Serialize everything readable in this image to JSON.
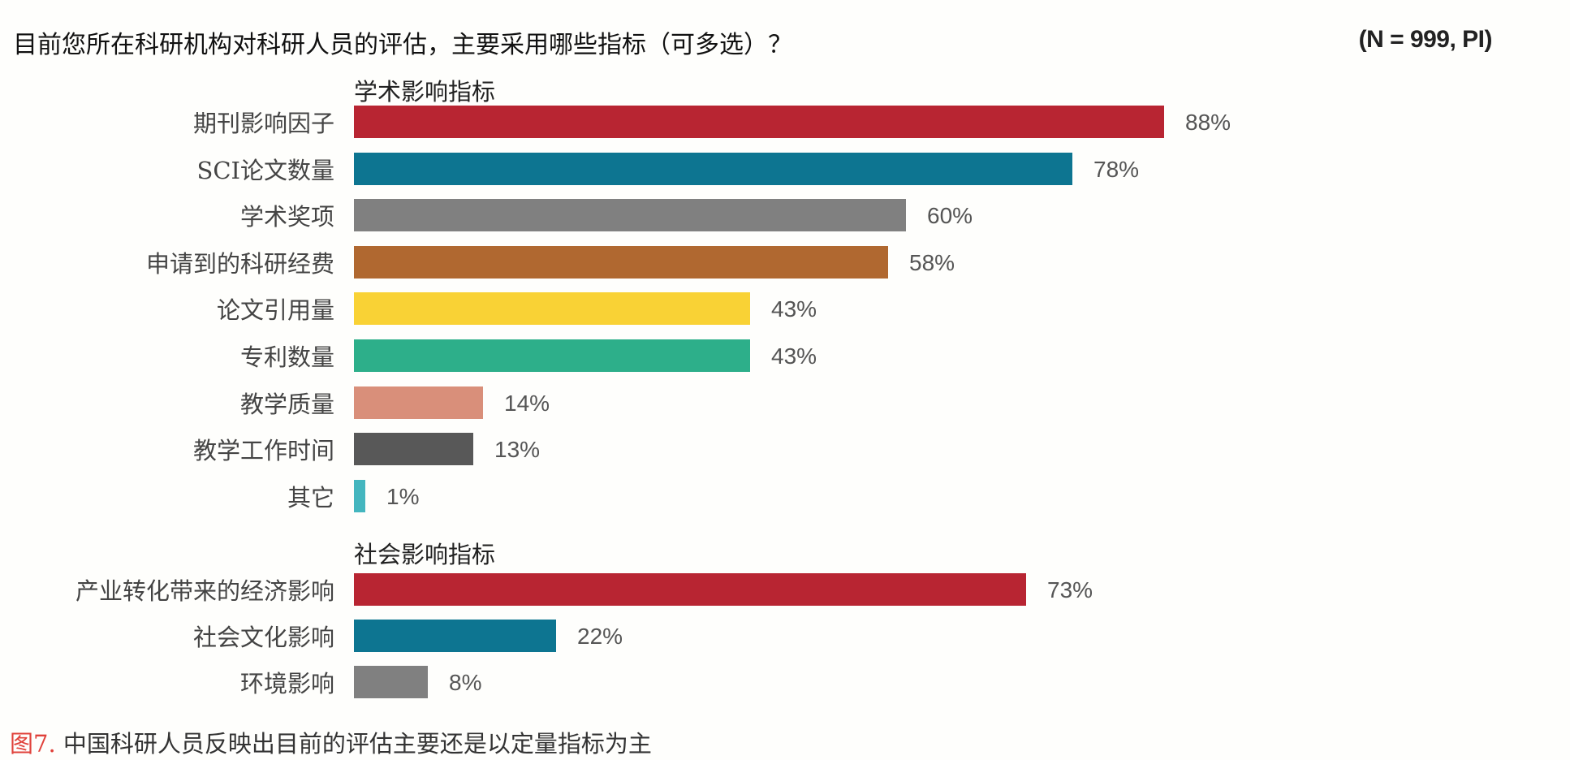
{
  "header": {
    "question": "目前您所在科研机构对科研人员的评估，主要采用哪些指标（可多选）？",
    "sample": "(N = 999, PI)"
  },
  "chart_data": {
    "type": "bar",
    "orientation": "horizontal",
    "unit": "%",
    "xlim": [
      0,
      100
    ],
    "grid": false,
    "groups": [
      {
        "title": "学术影响指标",
        "items": [
          {
            "label": "期刊影响因子",
            "value": 88,
            "value_label": "88%",
            "color": "#b82532"
          },
          {
            "label": "SCI论文数量",
            "value": 78,
            "value_label": "78%",
            "color": "#0d7591"
          },
          {
            "label": "学术奖项",
            "value": 60,
            "value_label": "60%",
            "color": "#808080"
          },
          {
            "label": "申请到的科研经费",
            "value": 58,
            "value_label": "58%",
            "color": "#b06830"
          },
          {
            "label": "论文引用量",
            "value": 43,
            "value_label": "43%",
            "color": "#f9d235"
          },
          {
            "label": "专利数量",
            "value": 43,
            "value_label": "43%",
            "color": "#2daf8a"
          },
          {
            "label": "教学质量",
            "value": 14,
            "value_label": "14%",
            "color": "#d98f7a"
          },
          {
            "label": "教学工作时间",
            "value": 13,
            "value_label": "13%",
            "color": "#585858"
          },
          {
            "label": "其它",
            "value": 1,
            "value_label": "1%",
            "color": "#44b6bf"
          }
        ]
      },
      {
        "title": "社会影响指标",
        "items": [
          {
            "label": "产业转化带来的经济影响",
            "value": 73,
            "value_label": "73%",
            "color": "#b82532"
          },
          {
            "label": "社会文化影响",
            "value": 22,
            "value_label": "22%",
            "color": "#0d7591"
          },
          {
            "label": "环境影响",
            "value": 8,
            "value_label": "8%",
            "color": "#808080"
          }
        ]
      }
    ]
  },
  "caption": {
    "figure_no": "图7.",
    "text": " 中国科研人员反映出目前的评估主要还是以定量指标为主"
  }
}
